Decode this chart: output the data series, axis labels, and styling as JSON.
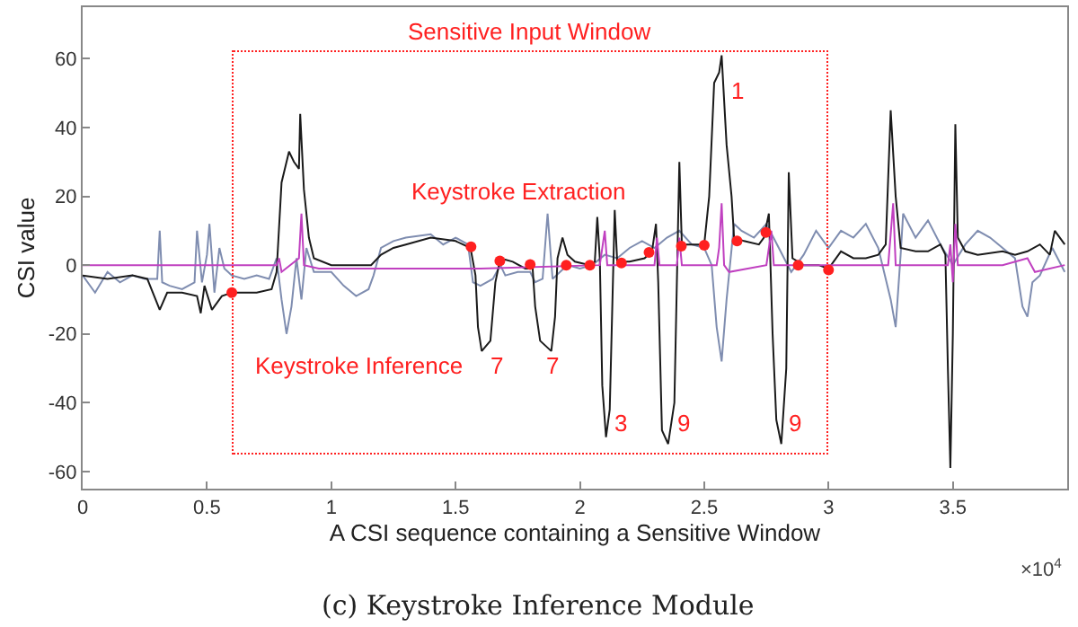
{
  "chart_data": {
    "type": "line",
    "xlabel": "A CSI sequence containing a Sensitive Window",
    "ylabel": "CSI value",
    "xlim": [
      0,
      3.96
    ],
    "ylim": [
      -65,
      75
    ],
    "xticks": [
      0,
      0.5,
      1,
      1.5,
      2,
      2.5,
      3,
      3.5
    ],
    "yticks": [
      -60,
      -40,
      -20,
      0,
      20,
      40,
      60
    ],
    "grid": false,
    "line_style": "solid",
    "series": [
      {
        "color": "#7f8db0",
        "x": [
          0,
          0.05,
          0.1,
          0.15,
          0.2,
          0.25,
          0.3,
          0.31,
          0.32,
          0.35,
          0.4,
          0.45,
          0.46,
          0.48,
          0.5,
          0.51,
          0.53,
          0.55,
          0.57,
          0.6,
          0.65,
          0.7,
          0.75,
          0.78,
          0.8,
          0.82,
          0.84,
          0.86,
          0.88,
          0.9,
          0.93,
          1.0,
          1.05,
          1.1,
          1.15,
          1.17,
          1.2,
          1.25,
          1.3,
          1.4,
          1.45,
          1.5,
          1.55,
          1.57,
          1.6,
          1.65,
          1.68,
          1.7,
          1.75,
          1.8,
          1.82,
          1.85,
          1.87,
          1.89,
          1.92,
          1.95,
          2.0,
          2.05,
          2.1,
          2.15,
          2.2,
          2.25,
          2.3,
          2.35,
          2.4,
          2.45,
          2.5,
          2.53,
          2.55,
          2.57,
          2.59,
          2.62,
          2.65,
          2.7,
          2.75,
          2.8,
          2.85,
          2.9,
          2.95,
          3.0,
          3.05,
          3.1,
          3.15,
          3.2,
          3.25,
          3.27,
          3.29,
          3.3,
          3.35,
          3.4,
          3.45,
          3.5,
          3.55,
          3.6,
          3.65,
          3.7,
          3.75,
          3.78,
          3.8,
          3.82,
          3.85,
          3.9,
          3.95
        ],
        "values": [
          -3,
          -8,
          -2,
          -5,
          -3,
          -4,
          -4,
          10,
          -5,
          -6,
          -7,
          -5,
          10,
          -5,
          3,
          12,
          -8,
          5,
          -1,
          -3,
          -4,
          -3,
          -4,
          2,
          -10,
          -20,
          -12,
          2,
          -10,
          5,
          -2,
          -2,
          -6,
          -9,
          -7,
          -3,
          5,
          7,
          8,
          9,
          6,
          8,
          6,
          -5,
          -6,
          -4,
          0,
          -3,
          -2,
          -2,
          -5,
          -4,
          15,
          -4,
          -2,
          0,
          -1,
          0,
          3,
          2,
          5,
          7,
          5,
          8,
          10,
          6,
          5,
          0,
          -18,
          -28,
          -10,
          12,
          10,
          8,
          12,
          5,
          -2,
          3,
          10,
          5,
          10,
          8,
          12,
          5,
          -10,
          -18,
          3,
          15,
          8,
          13,
          6,
          0,
          6,
          10,
          8,
          5,
          2,
          -12,
          -15,
          -5,
          -3,
          5,
          -2
        ]
      },
      {
        "color": "#1a1a1a",
        "x": [
          0,
          0.1,
          0.2,
          0.26,
          0.31,
          0.34,
          0.4,
          0.46,
          0.475,
          0.49,
          0.52,
          0.56,
          0.6,
          0.7,
          0.76,
          0.78,
          0.8,
          0.83,
          0.85,
          0.87,
          0.875,
          0.89,
          0.91,
          0.93,
          1.0,
          1.1,
          1.16,
          1.2,
          1.25,
          1.3,
          1.4,
          1.5,
          1.56,
          1.58,
          1.59,
          1.605,
          1.64,
          1.66,
          1.68,
          1.73,
          1.78,
          1.81,
          1.82,
          1.84,
          1.885,
          1.9,
          1.91,
          1.93,
          1.95,
          1.98,
          2.04,
          2.06,
          2.07,
          2.08,
          2.09,
          2.105,
          2.12,
          2.14,
          2.15,
          2.2,
          2.26,
          2.29,
          2.306,
          2.315,
          2.33,
          2.355,
          2.38,
          2.4,
          2.41,
          2.46,
          2.5,
          2.52,
          2.54,
          2.56,
          2.57,
          2.59,
          2.61,
          2.62,
          2.66,
          2.72,
          2.74,
          2.76,
          2.775,
          2.79,
          2.81,
          2.83,
          2.84,
          2.855,
          2.9,
          2.96,
          3.0,
          3.05,
          3.1,
          3.15,
          3.2,
          3.23,
          3.25,
          3.27,
          3.29,
          3.35,
          3.4,
          3.45,
          3.47,
          3.48,
          3.49,
          3.5,
          3.51,
          3.52,
          3.55,
          3.6,
          3.7,
          3.75,
          3.8,
          3.85,
          3.89,
          3.91,
          3.95
        ],
        "values": [
          -3,
          -4,
          -3,
          -4,
          -13,
          -8,
          -8,
          -9,
          -14,
          -6,
          -13,
          -9,
          -8,
          -8,
          -7,
          -2,
          24,
          33,
          30,
          28,
          44,
          22,
          8,
          2,
          0,
          0,
          0,
          3,
          5,
          6,
          8,
          7,
          5,
          -3,
          -18,
          -25,
          -22,
          -5,
          2,
          1,
          -1,
          -1,
          -12,
          -22,
          -25,
          -15,
          2,
          8,
          3,
          1,
          0,
          1,
          14,
          2,
          -35,
          -50,
          -42,
          16,
          1,
          1,
          2,
          4,
          12,
          -5,
          -48,
          -52,
          -40,
          30,
          6,
          6,
          6,
          20,
          53,
          56,
          61,
          35,
          20,
          8,
          7,
          6,
          8,
          15,
          -20,
          -45,
          -52,
          -30,
          27,
          2,
          0,
          0,
          -1,
          4,
          2,
          2,
          3,
          6,
          45,
          20,
          5,
          4,
          4,
          6,
          3,
          -30,
          -59,
          -20,
          41,
          8,
          4,
          3,
          4,
          3,
          4,
          6,
          3,
          10,
          6
        ]
      },
      {
        "color": "#c040c0",
        "x": [
          0,
          0.78,
          0.79,
          0.8,
          0.87,
          0.88,
          0.89,
          0.95,
          1.6,
          2.08,
          2.1,
          2.11,
          2.3,
          2.31,
          2.32,
          2.39,
          2.4,
          2.41,
          2.55,
          2.56,
          2.57,
          2.58,
          2.6,
          2.75,
          2.77,
          2.78,
          3.24,
          3.26,
          3.27,
          3.48,
          3.49,
          3.5,
          3.51,
          3.52,
          3.7,
          3.8,
          3.83,
          3.95
        ],
        "values": [
          0,
          0,
          2,
          -2,
          2,
          15,
          0,
          -1,
          -1,
          0,
          10,
          0,
          0,
          8,
          0,
          0,
          8,
          0,
          0,
          5,
          18,
          0,
          -2,
          0,
          10,
          0,
          0,
          18,
          0,
          0,
          6,
          -5,
          12,
          0,
          0,
          2,
          -2,
          0
        ]
      },
      {
        "type": "scatter",
        "marker": "circle",
        "color": "#ff2020",
        "x": [
          0.6,
          1.562,
          1.678,
          1.8,
          1.945,
          2.04,
          2.167,
          2.278,
          2.408,
          2.5,
          2.632,
          2.748,
          2.878,
          3.0
        ],
        "values": [
          -8,
          5.3,
          1.2,
          0.2,
          0,
          0,
          0.6,
          3.7,
          5.5,
          5.8,
          7,
          9.5,
          0,
          -1.4
        ]
      }
    ],
    "annotations": [
      "Sensitive Input Window",
      "Keystroke Extraction",
      "Keystroke Inference",
      "7",
      "7",
      "3",
      "9",
      "9",
      "1",
      "×10$^{4}$",
      "(c) Keystroke Inference Module"
    ]
  }
}
